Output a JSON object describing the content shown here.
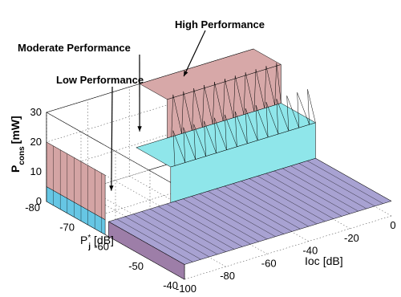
{
  "chart_data": {
    "type": "surface3d",
    "title": "",
    "axes": {
      "x": {
        "label_main": "Ioc",
        "label_unit": "[dB]",
        "range": [
          -100,
          0
        ],
        "ticks": [
          -100,
          -80,
          -60,
          -40,
          -20,
          0
        ],
        "tick_labels": [
          "-100",
          "-80",
          "-60",
          "-40",
          "-20",
          "0"
        ]
      },
      "y": {
        "label_main": "P",
        "label_sub": "j",
        "label_sup": "*",
        "label_unit": "[dB]",
        "range": [
          -80,
          -40
        ],
        "ticks": [
          -80,
          -70,
          -60,
          -50,
          -40
        ],
        "tick_labels": [
          "-80",
          "-70",
          "-60",
          "-50",
          "-40"
        ]
      },
      "z": {
        "label_main": "P",
        "label_sub": "cons",
        "label_unit": "[mW]",
        "range": [
          0,
          30
        ],
        "ticks": [
          0,
          10,
          20,
          30
        ],
        "tick_labels": [
          "0",
          "10",
          "20",
          "30"
        ]
      }
    },
    "grid": true,
    "levels": [
      {
        "name": "Low Performance",
        "z": 5
      },
      {
        "name": "Moderate Performance",
        "z": 17
      },
      {
        "name": "High Performance",
        "z": 30
      }
    ],
    "boundary_pj_low": -62,
    "boundary_pj_high": -72,
    "pj_back_plateau": -63,
    "pj_back_plateau_level_z": 20,
    "annotations": [
      {
        "text": "High Performance",
        "target": {
          "x": -37,
          "y": -78,
          "z": 30
        }
      },
      {
        "text": "Moderate Performance",
        "target": {
          "x": -60,
          "y": -77,
          "z": 17
        }
      },
      {
        "text": "Low Performance",
        "target": {
          "x": -82,
          "y": -72,
          "z": 5
        }
      }
    ],
    "colors": {
      "low": "#a8a2d2",
      "moderate": "#8fe6ea",
      "high": "#d7a8a8",
      "back_wall_low": "#66c6e4",
      "back_wall_high": "#d4a4a4",
      "low_plateau_front": "#9d7ea8",
      "edge": "#000000"
    }
  }
}
